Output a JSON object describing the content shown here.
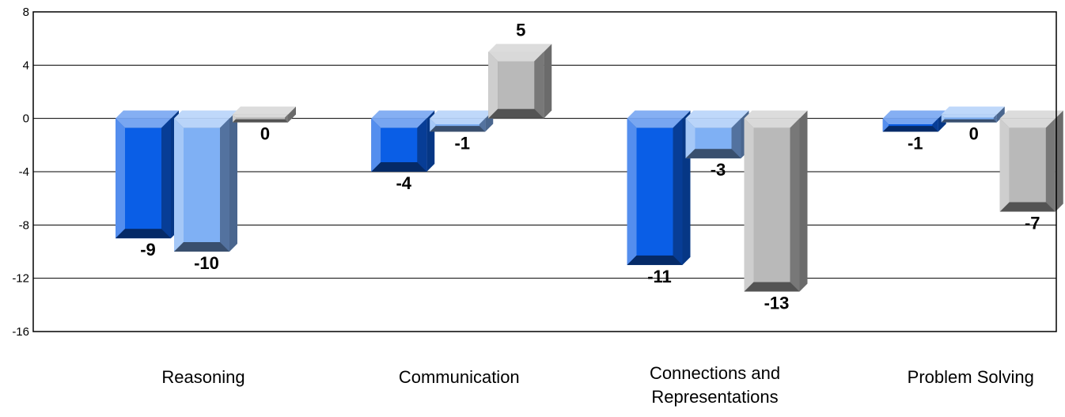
{
  "chart_data": {
    "type": "bar",
    "title": "",
    "xlabel": "",
    "ylabel": "",
    "ylim": [
      -16,
      8
    ],
    "yticks": [
      8,
      4,
      0,
      -4,
      -8,
      -12,
      -16
    ],
    "grid": true,
    "legend": "none",
    "categories": [
      [
        "Reasoning"
      ],
      [
        "Communication"
      ],
      [
        "Connections and",
        "Representations"
      ],
      [
        "Problem Solving"
      ]
    ],
    "series": [
      {
        "values": [
          -9,
          -4,
          -11,
          -1
        ],
        "color": "#0a5ee6"
      },
      {
        "values": [
          -10,
          -1,
          -3,
          0
        ],
        "color": "#7fb0f4"
      },
      {
        "values": [
          0,
          5,
          -13,
          -7
        ],
        "color": "#b9b9b9"
      }
    ]
  }
}
